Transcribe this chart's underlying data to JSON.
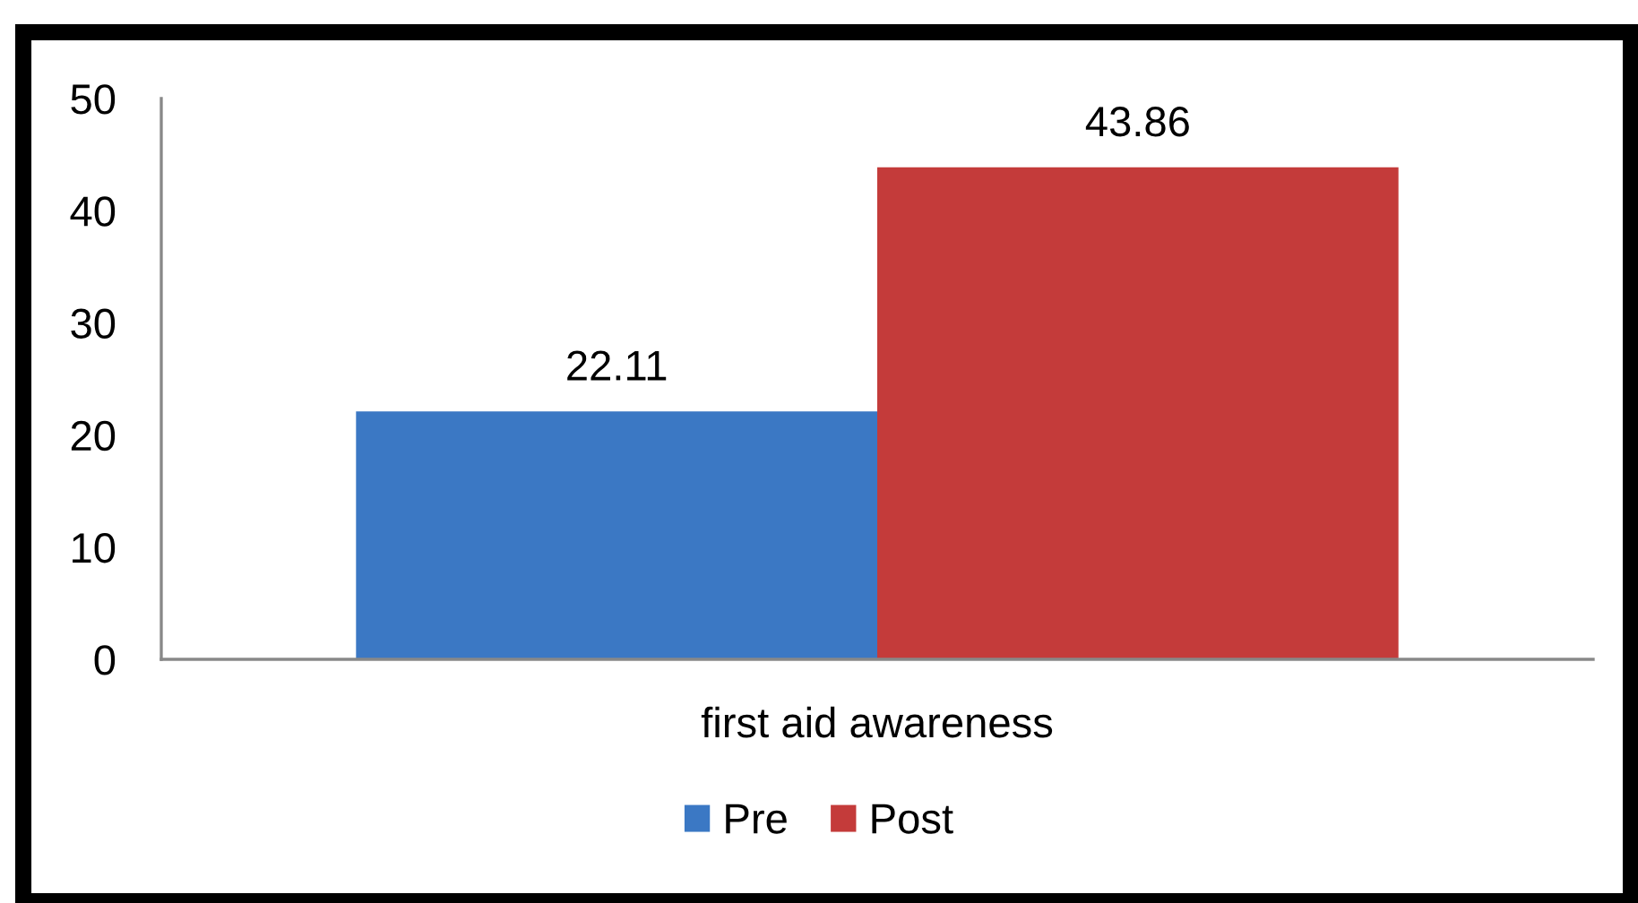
{
  "chart_data": {
    "type": "bar",
    "categories": [
      "first aid awareness"
    ],
    "series": [
      {
        "name": "Pre",
        "color": "#3b78c4",
        "values": [
          22.11
        ]
      },
      {
        "name": "Post",
        "color": "#c43b3a",
        "values": [
          43.86
        ]
      }
    ],
    "ylim": [
      0,
      50
    ],
    "yticks": [
      0,
      10,
      20,
      30,
      40,
      50
    ],
    "data_labels": true,
    "legend": "bottom"
  }
}
